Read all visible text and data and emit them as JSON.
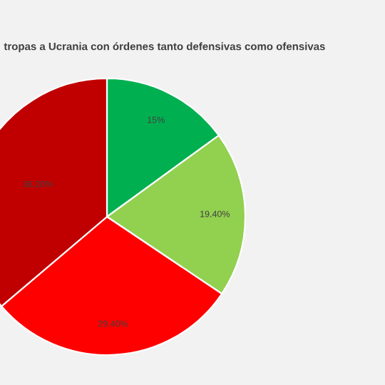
{
  "chart_data": {
    "type": "pie",
    "title": "tropas a Ucrania con órdenes tanto defensivas como ofensivas",
    "categories": [
      null,
      null,
      null,
      null
    ],
    "values": [
      15,
      19.4,
      29.4,
      36.2
    ],
    "value_labels": [
      "15%",
      "19.40%",
      "29.40%",
      "36.20%"
    ],
    "colors": [
      "#00b050",
      "#92d050",
      "#ff0000",
      "#c00000"
    ]
  }
}
